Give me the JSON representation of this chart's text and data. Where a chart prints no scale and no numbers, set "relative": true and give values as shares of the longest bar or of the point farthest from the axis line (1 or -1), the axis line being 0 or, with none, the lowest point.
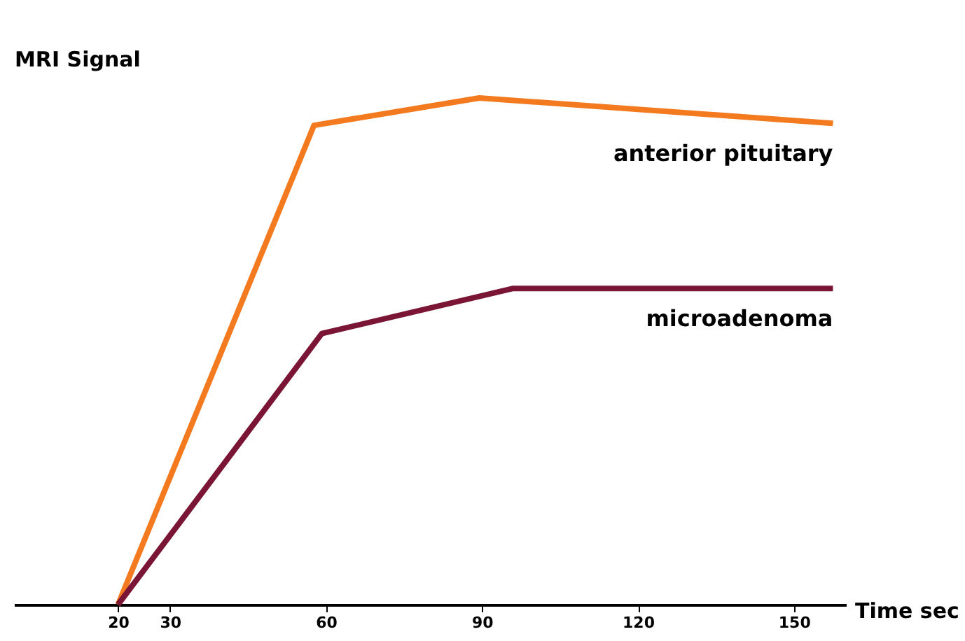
{
  "chart_data": {
    "type": "line",
    "relative": true,
    "xlabel": "Time sec",
    "ylabel": "MRI Signal",
    "xlim": [
      0,
      160
    ],
    "xticks": [
      20,
      30,
      60,
      90,
      120,
      150
    ],
    "grid": false,
    "marker": "none",
    "line_style": "solid",
    "series": [
      {
        "name": "anterior pituitary",
        "color": "#f47a20",
        "x": [
          20,
          57.7,
          89.5,
          157.5
        ],
        "values": [
          0,
          0.946,
          1,
          0.95
        ]
      },
      {
        "name": "microadenoma",
        "color": "#7a1535",
        "x": [
          20,
          59.2,
          96,
          157.5
        ],
        "values": [
          0,
          0.535,
          0.624,
          0.624
        ]
      }
    ]
  }
}
